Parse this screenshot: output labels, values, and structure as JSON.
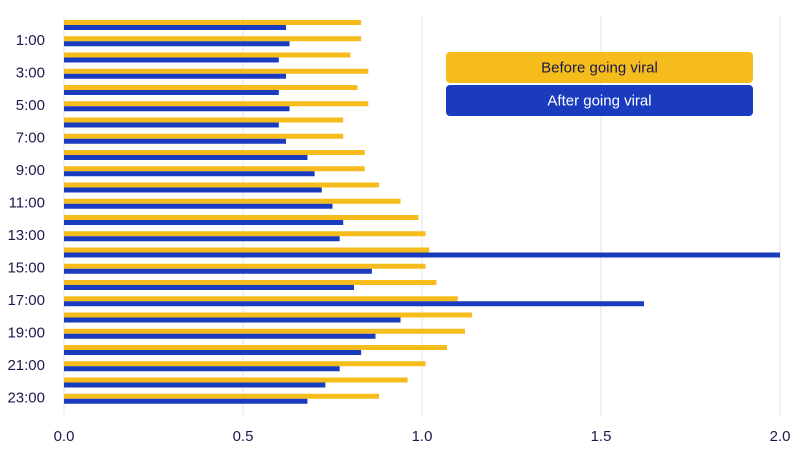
{
  "chart_data": {
    "type": "hbar",
    "categories": [
      null,
      "1:00",
      null,
      "3:00",
      null,
      "5:00",
      null,
      "7:00",
      null,
      "9:00",
      null,
      "11:00",
      null,
      "13:00",
      null,
      "15:00",
      null,
      "17:00",
      null,
      "19:00",
      null,
      "21:00",
      null,
      "23:00"
    ],
    "series": [
      {
        "name": "Before going viral",
        "color": "#f5bc1c",
        "values": [
          0.83,
          0.83,
          0.8,
          0.85,
          0.82,
          0.85,
          0.78,
          0.78,
          0.84,
          0.84,
          0.88,
          0.94,
          0.99,
          1.01,
          1.02,
          1.01,
          1.04,
          1.1,
          1.14,
          1.12,
          1.07,
          1.01,
          0.96,
          0.88
        ]
      },
      {
        "name": "After going viral",
        "color": "#1a3bbd",
        "values": [
          0.62,
          0.63,
          0.6,
          0.62,
          0.6,
          0.63,
          0.6,
          0.62,
          0.68,
          0.7,
          0.72,
          0.75,
          0.78,
          0.77,
          2.0,
          0.86,
          0.81,
          1.62,
          0.94,
          0.87,
          0.83,
          0.77,
          0.73,
          0.68
        ]
      }
    ],
    "xlim": [
      0,
      2
    ],
    "xticks": [
      {
        "value": 0,
        "label": "0.0"
      },
      {
        "value": 0.5,
        "label": "0.5"
      },
      {
        "value": 1,
        "label": "1.0"
      },
      {
        "value": 1.5,
        "label": "1.5"
      },
      {
        "value": 2,
        "label": "2.0"
      }
    ],
    "grid": true,
    "legend": "upper right"
  }
}
